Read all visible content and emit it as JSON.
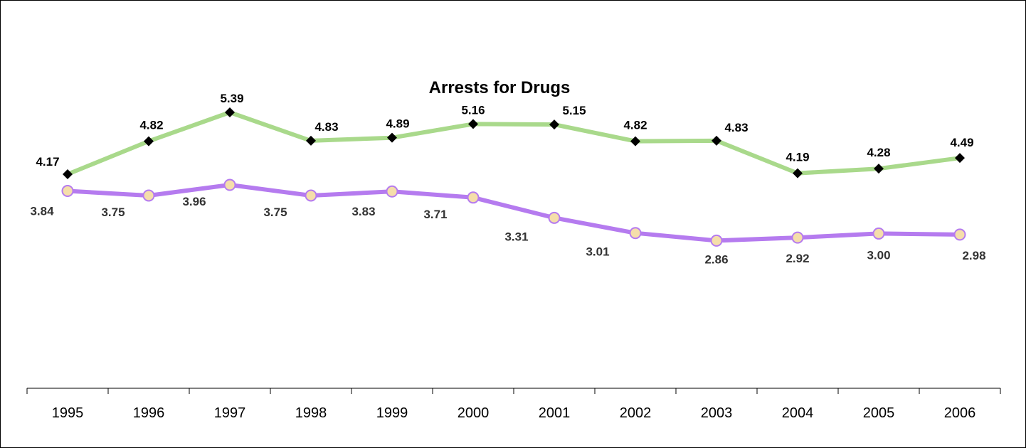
{
  "chart_data": {
    "type": "line",
    "title": "Arrests for Drugs",
    "xlabel": "",
    "ylabel": "",
    "categories": [
      "1995",
      "1996",
      "1997",
      "1998",
      "1999",
      "2000",
      "2001",
      "2002",
      "2003",
      "2004",
      "2005",
      "2006"
    ],
    "ylim": [
      0,
      6
    ],
    "grid": false,
    "legend": "none",
    "series": [
      {
        "values": [
          4.17,
          4.82,
          5.39,
          4.83,
          4.89,
          5.16,
          5.15,
          4.82,
          4.83,
          4.19,
          4.28,
          4.49
        ],
        "labels": [
          "4.17",
          "4.82",
          "5.39",
          "4.83",
          "4.89",
          "5.16",
          "5.15",
          "4.82",
          "4.83",
          "4.19",
          "4.28",
          "4.49"
        ],
        "color": "#a9d98b",
        "marker": "diamond",
        "marker_color": "#000000",
        "label_color": "#000000"
      },
      {
        "values": [
          3.84,
          3.75,
          3.96,
          3.75,
          3.83,
          3.71,
          3.31,
          3.01,
          2.86,
          2.92,
          3.0,
          2.98
        ],
        "labels": [
          "3.84",
          "3.75",
          "3.96",
          "3.75",
          "3.83",
          "3.71",
          "3.31",
          "3.01",
          "2.86",
          "2.92",
          "3.00",
          "2.98"
        ],
        "color": "#b57bef",
        "marker": "circle",
        "marker_color": "#f5deaa",
        "label_color": "#333333"
      }
    ]
  }
}
